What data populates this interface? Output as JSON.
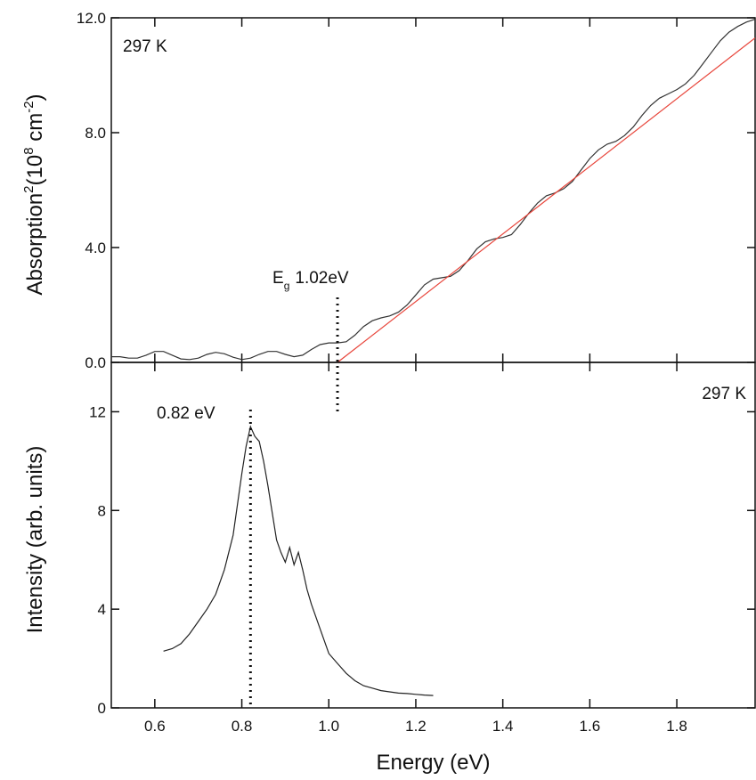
{
  "chart_data": [
    {
      "type": "line",
      "y_label_parts": [
        "Absorption",
        "2",
        "(10",
        "8",
        " cm",
        "-2",
        ")"
      ],
      "annotation": "297 K",
      "gap_marker": {
        "symbol": "E",
        "subscript": "g",
        "text": "1.02eV",
        "x": 1.02
      },
      "xlim": [
        0.5,
        1.98
      ],
      "ylim": [
        0,
        12
      ],
      "xticks": [
        0.6,
        0.8,
        1.0,
        1.2,
        1.4,
        1.6,
        1.8
      ],
      "yticks": [
        {
          "value": 0,
          "label": "0.0"
        },
        {
          "value": 4,
          "label": "4.0"
        },
        {
          "value": 8,
          "label": "8.0"
        },
        {
          "value": 12,
          "label": "12.0"
        }
      ],
      "series": [
        {
          "color": "#333333",
          "x": [
            0.5,
            0.52,
            0.54,
            0.56,
            0.58,
            0.6,
            0.62,
            0.64,
            0.66,
            0.68,
            0.7,
            0.72,
            0.74,
            0.76,
            0.78,
            0.8,
            0.82,
            0.84,
            0.86,
            0.88,
            0.9,
            0.92,
            0.94,
            0.96,
            0.98,
            1.0,
            1.02,
            1.04,
            1.06,
            1.08,
            1.1,
            1.12,
            1.14,
            1.16,
            1.18,
            1.2,
            1.22,
            1.24,
            1.26,
            1.28,
            1.3,
            1.32,
            1.34,
            1.36,
            1.38,
            1.4,
            1.42,
            1.44,
            1.46,
            1.48,
            1.5,
            1.52,
            1.54,
            1.56,
            1.58,
            1.6,
            1.62,
            1.64,
            1.66,
            1.68,
            1.7,
            1.72,
            1.74,
            1.76,
            1.78,
            1.8,
            1.82,
            1.84,
            1.86,
            1.88,
            1.9,
            1.92,
            1.94,
            1.96,
            1.98
          ],
          "values": [
            0.2,
            0.2,
            0.15,
            0.15,
            0.25,
            0.38,
            0.38,
            0.25,
            0.12,
            0.1,
            0.15,
            0.28,
            0.35,
            0.3,
            0.18,
            0.1,
            0.15,
            0.28,
            0.38,
            0.38,
            0.28,
            0.2,
            0.25,
            0.45,
            0.62,
            0.68,
            0.68,
            0.72,
            0.95,
            1.25,
            1.45,
            1.55,
            1.62,
            1.75,
            2.0,
            2.35,
            2.7,
            2.9,
            2.95,
            3.0,
            3.2,
            3.55,
            3.95,
            4.2,
            4.3,
            4.35,
            4.45,
            4.8,
            5.2,
            5.55,
            5.8,
            5.9,
            6.05,
            6.3,
            6.7,
            7.1,
            7.4,
            7.6,
            7.7,
            7.9,
            8.2,
            8.6,
            8.95,
            9.2,
            9.35,
            9.5,
            9.7,
            10.0,
            10.4,
            10.8,
            11.2,
            11.5,
            11.7,
            11.85,
            11.95
          ]
        },
        {
          "color": "#e8463c",
          "x": [
            1.02,
            1.98
          ],
          "values": [
            0,
            11.3
          ]
        }
      ]
    },
    {
      "type": "line",
      "x_label": "Energy (eV)",
      "y_label": "Intensity (arb. units)",
      "annotation": "297 K",
      "peak_marker": {
        "text": "0.82 eV",
        "x": 0.82
      },
      "xlim": [
        0.5,
        1.98
      ],
      "ylim": [
        0,
        14
      ],
      "xticks": [
        0.6,
        0.8,
        {
          "value": 1.0,
          "label": "1.0"
        },
        1.2,
        1.4,
        1.6,
        1.8
      ],
      "yticks": [
        0,
        4,
        8,
        12
      ],
      "series": [
        {
          "color": "#222222",
          "x": [
            0.62,
            0.64,
            0.66,
            0.68,
            0.7,
            0.72,
            0.74,
            0.76,
            0.78,
            0.8,
            0.81,
            0.82,
            0.83,
            0.84,
            0.85,
            0.86,
            0.88,
            0.89,
            0.9,
            0.91,
            0.92,
            0.93,
            0.94,
            0.95,
            0.96,
            0.98,
            1.0,
            1.02,
            1.04,
            1.06,
            1.08,
            1.1,
            1.12,
            1.14,
            1.16,
            1.18,
            1.2,
            1.22,
            1.24
          ],
          "values": [
            2.3,
            2.4,
            2.6,
            3.0,
            3.5,
            4.0,
            4.6,
            5.6,
            7.0,
            9.5,
            10.6,
            11.4,
            11.0,
            10.8,
            10.0,
            9.0,
            6.8,
            6.3,
            5.9,
            6.5,
            5.8,
            6.3,
            5.6,
            4.8,
            4.2,
            3.2,
            2.2,
            1.8,
            1.4,
            1.1,
            0.9,
            0.8,
            0.7,
            0.65,
            0.6,
            0.58,
            0.55,
            0.52,
            0.5
          ]
        }
      ]
    }
  ]
}
